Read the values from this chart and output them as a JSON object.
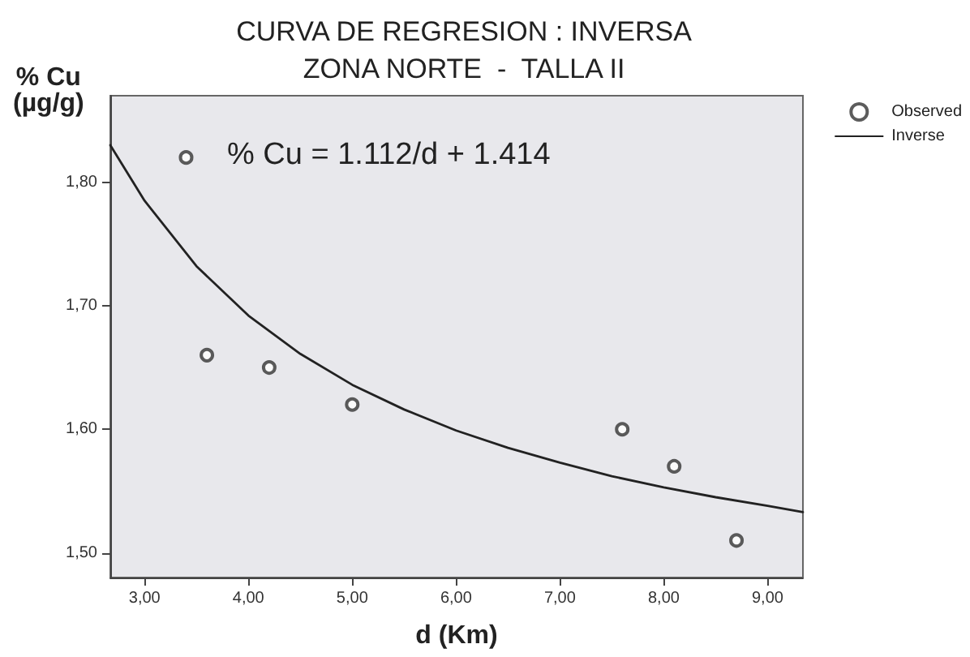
{
  "chart_data": {
    "type": "scatter",
    "title": "CURVA DE REGRESION : INVERSA",
    "subtitle": "ZONA NORTE  -  TALLA II",
    "xlabel": "d (Km)",
    "ylabel": "% Cu\n(µg/g)",
    "annotations": [
      "% Cu = 1.112/d + 1.414"
    ],
    "xlim": [
      2.67,
      9.34
    ],
    "ylim": [
      1.48,
      1.87
    ],
    "xticks": [
      {
        "value": 3,
        "label": "3,00"
      },
      {
        "value": 4,
        "label": "4,00"
      },
      {
        "value": 5,
        "label": "5,00"
      },
      {
        "value": 6,
        "label": "6,00"
      },
      {
        "value": 7,
        "label": "7,00"
      },
      {
        "value": 8,
        "label": "8,00"
      },
      {
        "value": 9,
        "label": "9,00"
      }
    ],
    "yticks": [
      {
        "value": 1.5,
        "label": "1,50"
      },
      {
        "value": 1.6,
        "label": "1,60"
      },
      {
        "value": 1.7,
        "label": "1,70"
      },
      {
        "value": 1.8,
        "label": "1,80"
      }
    ],
    "grid": false,
    "legend": "top right",
    "series": [
      {
        "name": "Observed",
        "marker": "circle",
        "color": "#333333",
        "x": [
          3.4,
          3.6,
          4.2,
          5.0,
          7.6,
          8.1,
          8.7
        ],
        "values": [
          1.82,
          1.66,
          1.65,
          1.62,
          1.6,
          1.57,
          1.51
        ]
      },
      {
        "name": "Inverse",
        "type": "line",
        "marker": "none",
        "line_style": "solid",
        "color": "#222222",
        "x": [
          2.67,
          3,
          3.5,
          4,
          4.5,
          5,
          5.5,
          6,
          6.5,
          7,
          7.5,
          8,
          8.5,
          9,
          9.34
        ],
        "values": [
          1.83,
          1.785,
          1.732,
          1.692,
          1.661,
          1.636,
          1.616,
          1.599,
          1.585,
          1.573,
          1.562,
          1.553,
          1.545,
          1.538,
          1.533
        ]
      }
    ]
  }
}
